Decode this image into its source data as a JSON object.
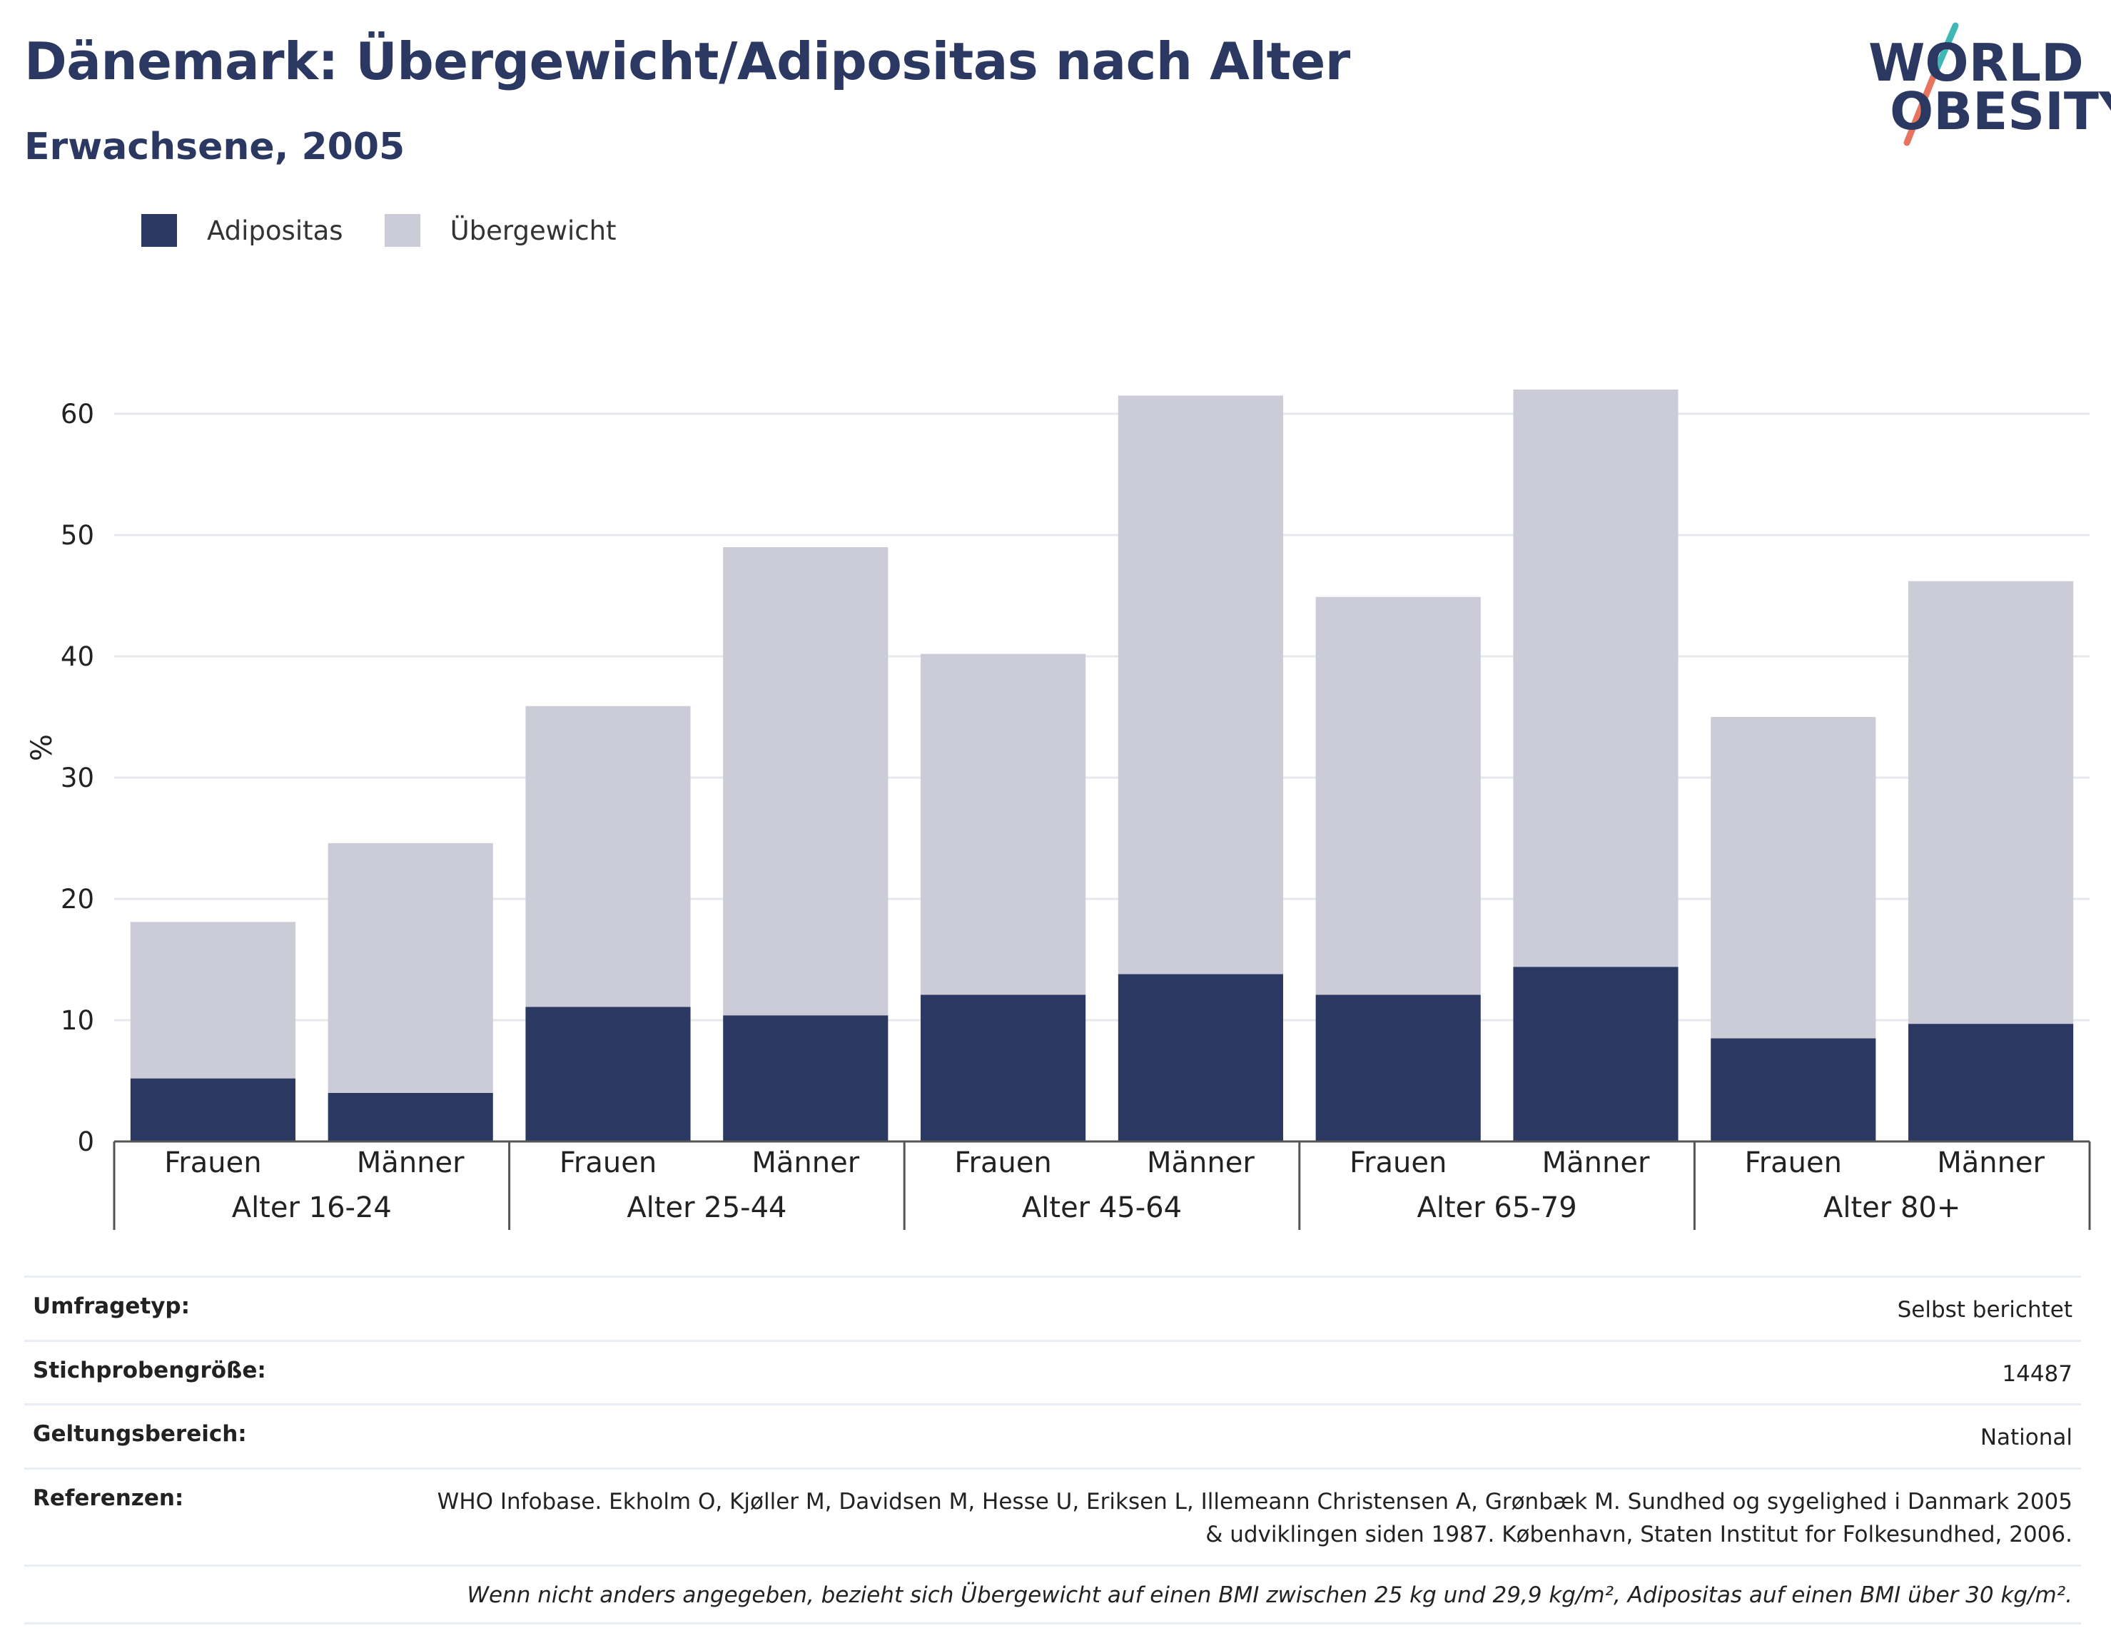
{
  "title": "Dänemark: Übergewicht/Adipositas nach Alter",
  "subtitle": "Erwachsene, 2005",
  "logo": {
    "line1": "WORLD",
    "line2": "OBESITY",
    "colors": {
      "text": "#2b3862",
      "slash_top": "#3fb8b5",
      "slash_bottom": "#e8735e"
    }
  },
  "legend": [
    {
      "name": "Adipositas",
      "color": "#2b3862"
    },
    {
      "name": "Übergewicht",
      "color": "#cbccd8"
    }
  ],
  "chart_data": {
    "type": "bar",
    "stacked": true,
    "ylabel": "%",
    "ylim": [
      0,
      68
    ],
    "yticks": [
      0,
      10,
      20,
      30,
      40,
      50,
      60
    ],
    "grid": true,
    "legend_position": "top-left",
    "groups": [
      "Alter 16-24",
      "Alter 25-44",
      "Alter 45-64",
      "Alter 65-79",
      "Alter 80+"
    ],
    "categories": [
      "Frauen",
      "Männer",
      "Frauen",
      "Männer",
      "Frauen",
      "Männer",
      "Frauen",
      "Männer",
      "Frauen",
      "Männer"
    ],
    "series": [
      {
        "name": "Adipositas",
        "color": "#2b3862",
        "values": [
          5.2,
          4.0,
          11.1,
          10.4,
          12.1,
          13.8,
          12.1,
          14.4,
          8.5,
          9.7
        ]
      },
      {
        "name": "Übergewicht",
        "color": "#cbccd8",
        "values": [
          12.9,
          20.6,
          24.8,
          38.6,
          28.1,
          47.7,
          32.8,
          47.6,
          26.5,
          36.5
        ]
      }
    ]
  },
  "info": {
    "rows": [
      {
        "key": "Umfragetyp:",
        "value": "Selbst berichtet"
      },
      {
        "key": "Stichprobengröße:",
        "value": "14487"
      },
      {
        "key": "Geltungsbereich:",
        "value": "National"
      },
      {
        "key": "Referenzen:",
        "value": "WHO Infobase. Ekholm O, Kjøller M, Davidsen M, Hesse U, Eriksen L, Illemeann Christensen A, Grønbæk M. Sundhed og sygelighed i Danmark 2005 & udviklingen siden 1987. København, Staten Institut for Folkesundhed, 2006."
      }
    ],
    "note": "Wenn nicht anders angegeben, bezieht sich Übergewicht auf einen BMI zwischen 25 kg und 29,9 kg/m², Adipositas auf einen BMI über 30 kg/m²."
  }
}
